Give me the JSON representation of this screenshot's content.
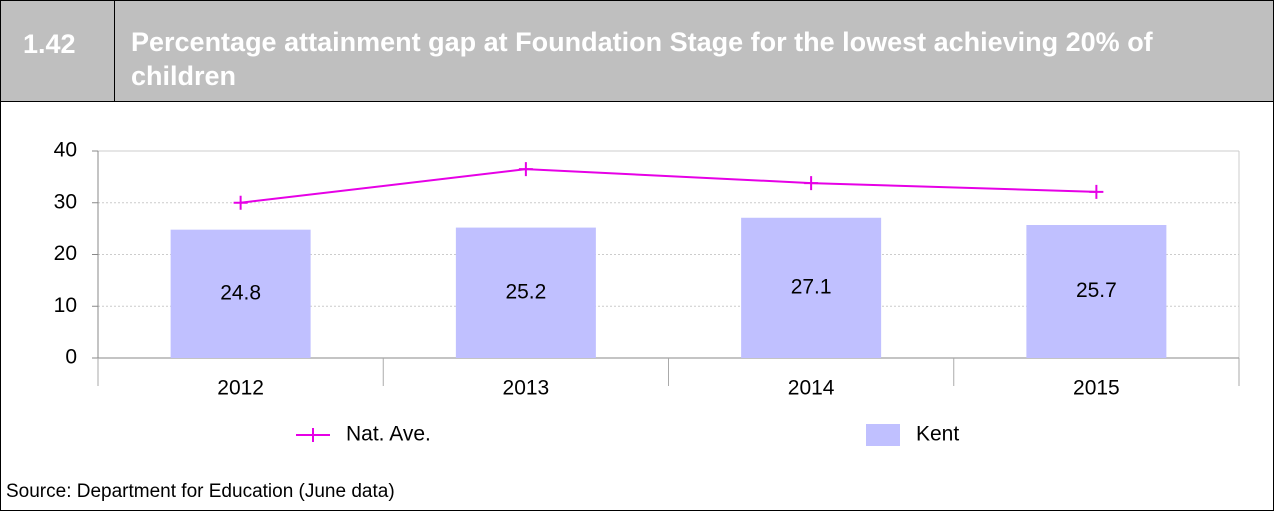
{
  "header": {
    "number": "1.42",
    "title": "Percentage attainment gap at Foundation Stage for the lowest achieving 20% of children"
  },
  "chart_data": {
    "type": "bar",
    "categories": [
      "2012",
      "2013",
      "2014",
      "2015"
    ],
    "series": [
      {
        "name": "Nat. Ave.",
        "type": "line",
        "color": "#e600e6",
        "values": [
          30,
          36.5,
          33.8,
          32.1
        ]
      },
      {
        "name": "Kent",
        "type": "bar",
        "color": "#c0c0ff",
        "values": [
          24.8,
          25.2,
          27.1,
          25.7
        ]
      }
    ],
    "ylim": [
      0,
      40
    ],
    "yticks": [
      0,
      10,
      20,
      30,
      40
    ],
    "grid": true
  },
  "source": "Source: Department for Education (June data)"
}
